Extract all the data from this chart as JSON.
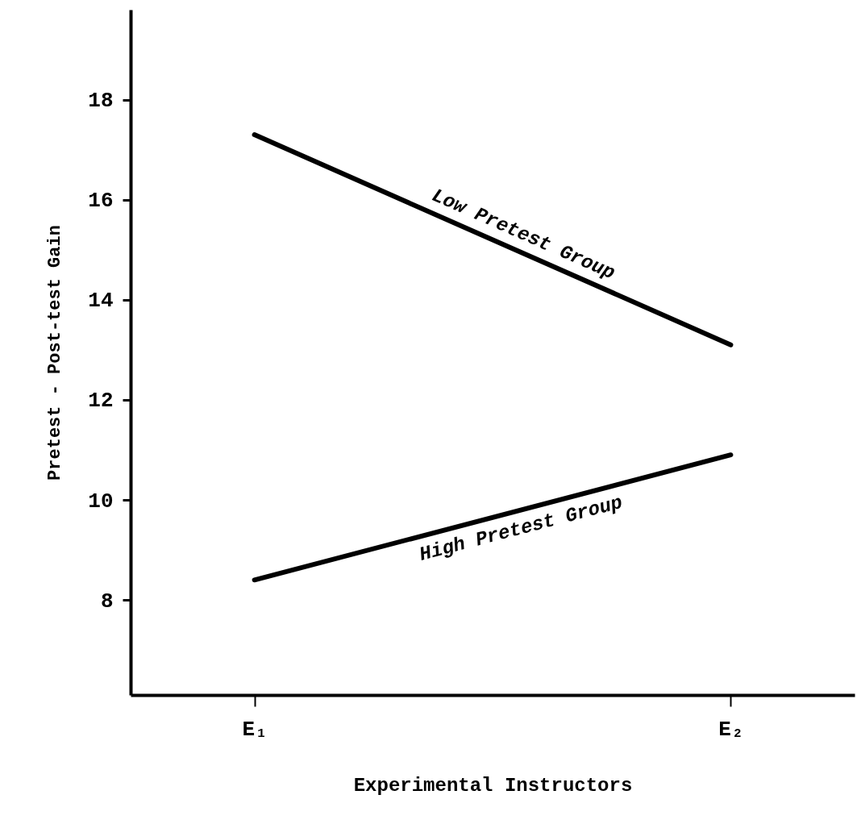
{
  "chart_data": {
    "type": "line",
    "xlabel": "Experimental Instructors",
    "ylabel": "Pretest - Post-test Gain",
    "categories": [
      "E₁",
      "E₂"
    ],
    "series": [
      {
        "name": "Low Pretest Group",
        "color": "#000000",
        "values": [
          17.3,
          13.1
        ]
      },
      {
        "name": "High Pretest Group",
        "color": "#000000",
        "values": [
          8.4,
          10.9
        ]
      }
    ],
    "ylim": [
      6.1,
      19.8
    ],
    "yticks": [
      8,
      10,
      12,
      14,
      16,
      18
    ],
    "grid": false,
    "marker": "none",
    "line_style": "solid"
  }
}
